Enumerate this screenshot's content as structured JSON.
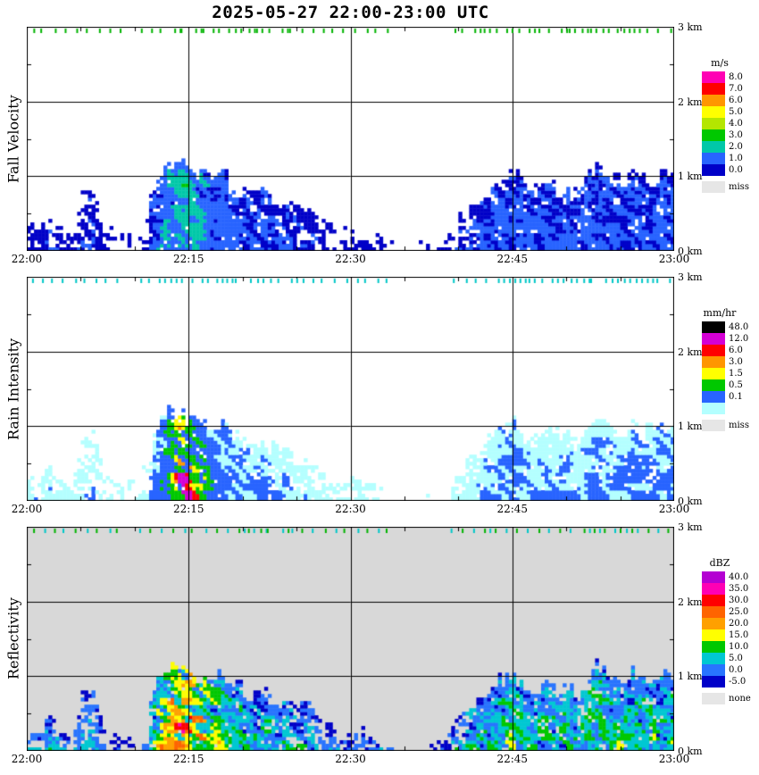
{
  "title": "2025-05-27  22:00-23:00 UTC",
  "time_axis": {
    "tick_labels": [
      "22:00",
      "22:15",
      "22:30",
      "22:45",
      "23:00"
    ],
    "gridline_minutes": [
      15,
      30,
      45
    ],
    "minor_tick_step_min": 5,
    "span_minutes": 60
  },
  "height_axis": {
    "tick_labels": [
      "3 km",
      "2 km",
      "1 km",
      "0 km"
    ],
    "min_km": 0,
    "max_km": 3,
    "gridline_km": [
      1,
      2
    ]
  },
  "chart_data": {
    "type": "heatmap",
    "x_unit": "minutes after 22:00 UTC",
    "y_unit": "km",
    "x_range_minutes": [
      0,
      60
    ],
    "y_range_km": [
      0,
      3
    ],
    "echo_top_km": [
      0.4,
      0.32,
      0.45,
      0.38,
      0.3,
      0.95,
      1.05,
      0.45,
      0.28,
      0.22,
      0.3,
      0.55,
      1.1,
      1.3,
      1.28,
      1.22,
      1.18,
      1.1,
      1.15,
      1.0,
      0.92,
      0.85,
      0.95,
      0.75,
      0.85,
      0.65,
      0.7,
      0.55,
      0.4,
      0.32,
      0.28,
      0.3,
      0.26,
      0.2,
      0.12,
      0.15,
      0.1,
      0.18,
      0.15,
      0.3,
      0.5,
      0.65,
      0.75,
      0.95,
      1.1,
      1.22,
      1.0,
      0.92,
      1.1,
      0.95,
      1.02,
      0.88,
      1.15,
      1.25,
      1.1,
      1.02,
      1.2,
      1.08,
      1.12,
      1.15
    ],
    "intensity_0_10": [
      2.2,
      1.8,
      2.4,
      2.0,
      1.6,
      2.0,
      2.2,
      1.4,
      1.2,
      1.0,
      1.2,
      1.6,
      4.5,
      7.0,
      9.5,
      8.5,
      7.0,
      5.0,
      4.0,
      3.2,
      3.0,
      2.8,
      3.0,
      2.6,
      2.6,
      2.2,
      2.4,
      2.0,
      1.8,
      1.6,
      1.6,
      1.8,
      1.6,
      1.2,
      0.8,
      1.0,
      0.8,
      1.0,
      0.9,
      1.6,
      2.2,
      2.6,
      2.8,
      3.0,
      3.2,
      3.4,
      3.0,
      2.8,
      3.2,
      2.9,
      3.0,
      2.7,
      3.3,
      3.4,
      3.1,
      3.0,
      3.3,
      3.0,
      3.2,
      3.3
    ],
    "panels": [
      {
        "id": "fall-velocity",
        "ylabel": "Fall Velocity",
        "legend_title": "m/s",
        "scale_type": "fall",
        "plot_bg": "#ffffff",
        "marker_colors": [
          "#00b400"
        ],
        "scale": {
          "thresholds": [
            0,
            1,
            2,
            3,
            4,
            5,
            6,
            7,
            8
          ],
          "colors": [
            "#0000c8",
            "#2864ff",
            "#00c8a8",
            "#00c800",
            "#b4e600",
            "#ffff00",
            "#ff9600",
            "#ff0000",
            "#ff00b4"
          ]
        },
        "legend": [
          {
            "label": "8.0",
            "color": "#ff00b4"
          },
          {
            "label": "7.0",
            "color": "#ff0000"
          },
          {
            "label": "6.0",
            "color": "#ff9600"
          },
          {
            "label": "5.0",
            "color": "#ffff00"
          },
          {
            "label": "4.0",
            "color": "#b4e600"
          },
          {
            "label": "3.0",
            "color": "#00c800"
          },
          {
            "label": "2.0",
            "color": "#00c8a8"
          },
          {
            "label": "1.0",
            "color": "#2864ff"
          },
          {
            "label": "0.0",
            "color": "#0000c8"
          }
        ],
        "missing": {
          "label": "miss",
          "color": "#e6e6e6"
        }
      },
      {
        "id": "rain-intensity",
        "ylabel": "Rain Intensity",
        "legend_title": "mm/hr",
        "scale_type": "rain",
        "plot_bg": "#ffffff",
        "marker_colors": [
          "#00c8c8"
        ],
        "scale": {
          "thresholds": [
            0,
            0.1,
            0.5,
            1.5,
            3,
            6,
            12,
            48
          ],
          "colors": [
            "#b4ffff",
            "#2864ff",
            "#00c800",
            "#ffff00",
            "#ff9600",
            "#ff0000",
            "#d400d4",
            "#000000"
          ]
        },
        "legend": [
          {
            "label": "48.0",
            "color": "#000000"
          },
          {
            "label": "12.0",
            "color": "#d400d4"
          },
          {
            "label": "6.0",
            "color": "#ff0000"
          },
          {
            "label": "3.0",
            "color": "#ff9600"
          },
          {
            "label": "1.5",
            "color": "#ffff00"
          },
          {
            "label": "0.5",
            "color": "#00c800"
          },
          {
            "label": "0.1",
            "color": "#2864ff"
          },
          {
            "label": "",
            "color": "#b4ffff"
          }
        ],
        "missing": {
          "label": "miss",
          "color": "#e6e6e6"
        }
      },
      {
        "id": "reflectivity",
        "ylabel": "Reflectivity",
        "legend_title": "dBZ",
        "scale_type": "refl",
        "plot_bg": "#d8d8d8",
        "marker_colors": [
          "#00b400",
          "#00c8c8"
        ],
        "scale": {
          "thresholds": [
            -5,
            0,
            5,
            10,
            15,
            20,
            25,
            30,
            35,
            40
          ],
          "colors": [
            "#0000c8",
            "#2874ff",
            "#00c8d2",
            "#00c800",
            "#ffff00",
            "#ffa000",
            "#ff6400",
            "#ff0000",
            "#ff00b4",
            "#b400d2"
          ]
        },
        "legend": [
          {
            "label": "40.0",
            "color": "#b400d2"
          },
          {
            "label": "35.0",
            "color": "#ff00b4"
          },
          {
            "label": "30.0",
            "color": "#ff0000"
          },
          {
            "label": "25.0",
            "color": "#ff6400"
          },
          {
            "label": "20.0",
            "color": "#ffa000"
          },
          {
            "label": "15.0",
            "color": "#ffff00"
          },
          {
            "label": "10.0",
            "color": "#00c800"
          },
          {
            "label": "5.0",
            "color": "#00c8d2"
          },
          {
            "label": "0.0",
            "color": "#2874ff"
          },
          {
            "label": "-5.0",
            "color": "#0000c8"
          }
        ],
        "missing": {
          "label": "none",
          "color": "#e6e6e6"
        }
      }
    ]
  }
}
